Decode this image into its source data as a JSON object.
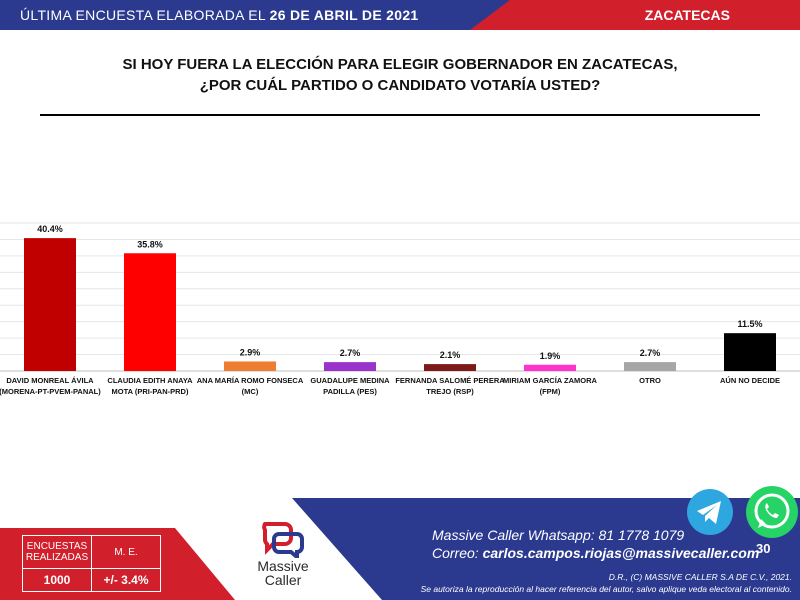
{
  "header": {
    "label": "ÚLTIMA ENCUESTA ELABORADA EL",
    "date": "26 DE ABRIL DE 2021",
    "state": "ZACATECAS"
  },
  "question": {
    "line1": "SI HOY FUERA LA ELECCIÓN PARA ELEGIR GOBERNADOR EN ZACATECAS,",
    "line2": "¿POR CUÁL PARTIDO O CANDIDATO VOTARÍA USTED?"
  },
  "chart_data": {
    "type": "bar",
    "ylim": [
      0,
      45
    ],
    "grid": true,
    "categories": [
      [
        "DAVID MONREAL ÁVILA",
        "(MORENA-PT-PVEM-PANAL)"
      ],
      [
        "CLAUDIA EDITH ANAYA",
        "MOTA (PRI-PAN-PRD)"
      ],
      [
        "ANA MARÍA ROMO FONSECA",
        "(MC)"
      ],
      [
        "GUADALUPE MEDINA",
        "PADILLA  (PES)"
      ],
      [
        "FERNANDA SALOMÉ PERERA",
        "TREJO (RSP)"
      ],
      [
        "MIRIAM GARCÍA ZAMORA",
        "(FPM)"
      ],
      [
        "OTRO"
      ],
      [
        "AÚN NO DECIDE"
      ]
    ],
    "values": [
      40.4,
      35.8,
      2.9,
      2.7,
      2.1,
      1.9,
      2.7,
      11.5
    ],
    "value_labels": [
      "40.4%",
      "35.8%",
      "2.9%",
      "2.7%",
      "2.1%",
      "1.9%",
      "2.7%",
      "11.5%"
    ],
    "colors": [
      "#c00000",
      "#ff0000",
      "#ed7d31",
      "#9933cc",
      "#7f1a1a",
      "#ff33cc",
      "#a6a6a6",
      "#000000"
    ]
  },
  "stats": {
    "col1_header": [
      "ENCUESTAS",
      "REALIZADAS"
    ],
    "col2_header": "M. E.",
    "surveys": "1000",
    "margin": "+/- 3.4%"
  },
  "brand": {
    "name_line1": "Massive",
    "name_line2": "Caller",
    "whatsapp_label": "Massive Caller Whatsapp:",
    "whatsapp_number": "81 1778 1079",
    "email_label": "Correo:",
    "email": "carlos.campos.riojas@massivecaller.com",
    "copyright": "D.R., (C) MASSIVE CALLER S.A DE C.V., 2021.",
    "notice": "Se autoriza la reproducción al hacer referencia del autor, salvo aplique veda electoral al contenido.",
    "page_number": "30"
  },
  "icons": {
    "telegram": "telegram-icon",
    "whatsapp": "whatsapp-icon",
    "logo": "massive-caller-logo-icon"
  }
}
